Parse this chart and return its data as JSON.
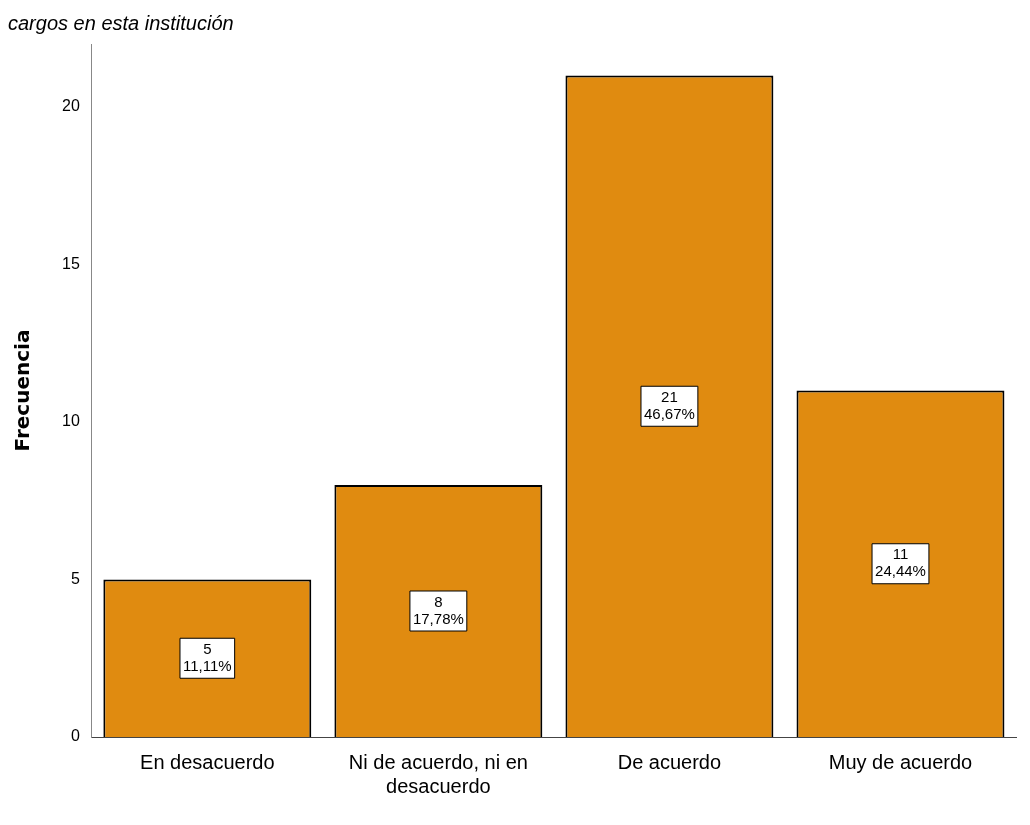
{
  "chart_data": {
    "type": "bar",
    "title": "cargos en esta institución",
    "ylabel": "Frecuencia",
    "categories": [
      "En desacuerdo",
      "Ni de acuerdo, ni en desacuerdo",
      "De acuerdo",
      "Muy de acuerdo"
    ],
    "values": [
      5,
      8,
      21,
      11
    ],
    "value_labels": [
      "5\n11,11%",
      "8\n17,78%",
      "21\n46,67%",
      "11\n24,44%"
    ],
    "color": "#e08b10",
    "ylim": [
      0,
      22
    ],
    "yticks": [
      0,
      5,
      10,
      15,
      20
    ],
    "grid": false,
    "legend": false
  }
}
